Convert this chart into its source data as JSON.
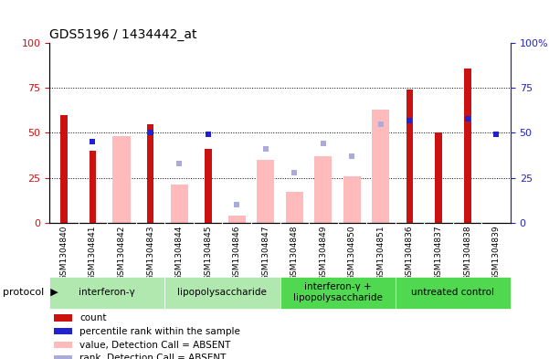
{
  "title": "GDS5196 / 1434442_at",
  "samples": [
    "GSM1304840",
    "GSM1304841",
    "GSM1304842",
    "GSM1304843",
    "GSM1304844",
    "GSM1304845",
    "GSM1304846",
    "GSM1304847",
    "GSM1304848",
    "GSM1304849",
    "GSM1304850",
    "GSM1304851",
    "GSM1304836",
    "GSM1304837",
    "GSM1304838",
    "GSM1304839"
  ],
  "count": [
    60,
    40,
    null,
    55,
    null,
    41,
    null,
    null,
    null,
    null,
    null,
    null,
    74,
    50,
    86,
    null
  ],
  "percentile_rank": [
    null,
    45,
    null,
    50,
    null,
    49,
    null,
    null,
    null,
    null,
    null,
    null,
    57,
    null,
    58,
    49
  ],
  "value_absent": [
    null,
    null,
    48,
    null,
    21,
    null,
    4,
    35,
    17,
    37,
    26,
    63,
    null,
    null,
    null,
    null
  ],
  "rank_absent": [
    null,
    null,
    null,
    null,
    33,
    null,
    10,
    41,
    28,
    44,
    37,
    55,
    null,
    null,
    null,
    null
  ],
  "groups": [
    {
      "label": "interferon-γ",
      "start": 0,
      "end": 4,
      "color": "#b0e8b0"
    },
    {
      "label": "lipopolysaccharide",
      "start": 4,
      "end": 8,
      "color": "#b0e8b0"
    },
    {
      "label": "interferon-γ +\nlipopolysaccharide",
      "start": 8,
      "end": 12,
      "color": "#50d850"
    },
    {
      "label": "untreated control",
      "start": 12,
      "end": 16,
      "color": "#50d850"
    }
  ],
  "bar_color_count": "#cc1111",
  "bar_color_absent": "#ffbbbb",
  "dot_color_rank": "#2222cc",
  "dot_color_rank_absent": "#aaaadd",
  "ylim": [
    0,
    100
  ],
  "yticks": [
    0,
    25,
    50,
    75,
    100
  ],
  "xtick_bg": "#d8d8d8",
  "plot_bg": "#ffffff"
}
